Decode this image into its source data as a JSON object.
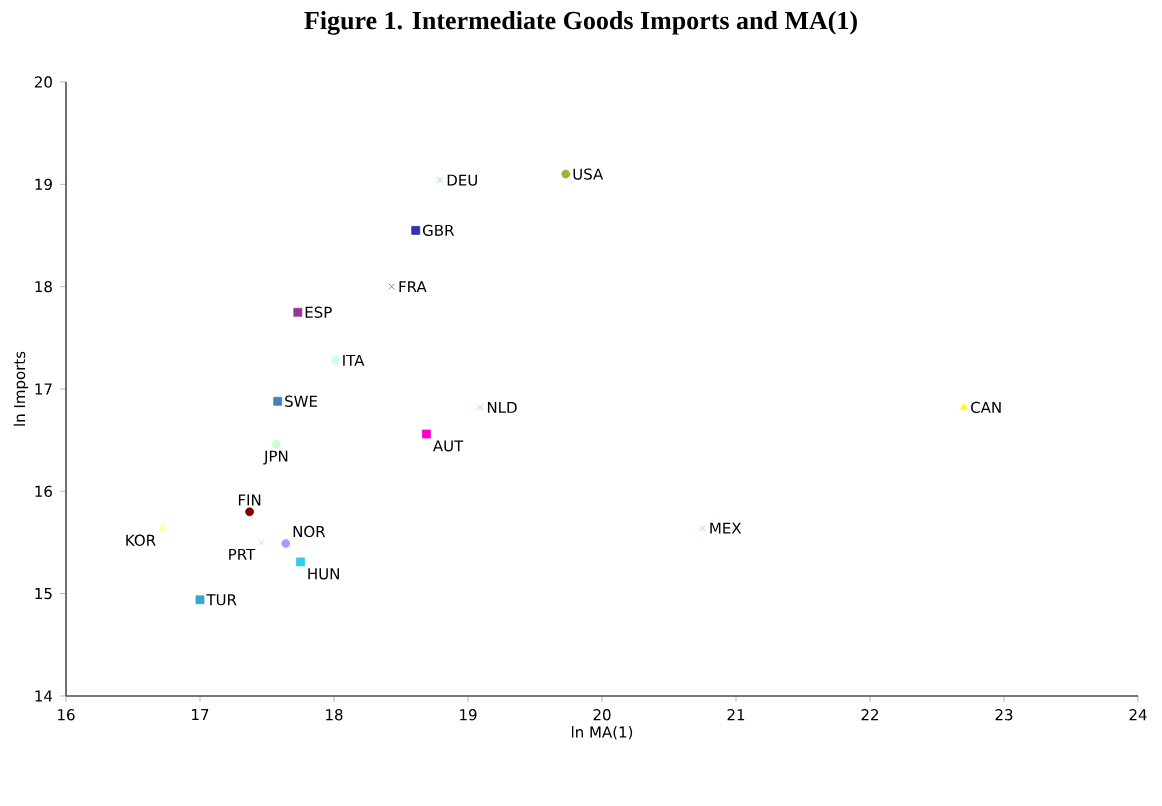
{
  "chart_data": {
    "type": "scatter",
    "title": "Figure 1. Intermediate Goods Imports and MA(1)",
    "xlabel": "ln MA(1)",
    "ylabel": "ln Imports",
    "xlim": [
      16,
      24
    ],
    "ylim": [
      14,
      20
    ],
    "xticks": [
      16,
      17,
      18,
      19,
      20,
      21,
      22,
      23,
      24
    ],
    "yticks": [
      14,
      15,
      16,
      17,
      18,
      19,
      20
    ],
    "grid": false,
    "legend": false,
    "series": [
      {
        "name": "USA",
        "color": "#99b433",
        "marker": "circle",
        "x": [
          19.73
        ],
        "values": [
          19.1
        ]
      },
      {
        "name": "DEU",
        "color": "#66e0e0",
        "marker": "cross",
        "x": [
          18.79
        ],
        "values": [
          19.04
        ]
      },
      {
        "name": "GBR",
        "color": "#3333aa",
        "marker": "square",
        "x": [
          18.61
        ],
        "values": [
          18.55
        ]
      },
      {
        "name": "FRA",
        "color": "#2e8b57",
        "marker": "cross",
        "x": [
          18.43
        ],
        "values": [
          18.0
        ]
      },
      {
        "name": "ESP",
        "color": "#993399",
        "marker": "square",
        "x": [
          17.73
        ],
        "values": [
          17.75
        ]
      },
      {
        "name": "ITA",
        "color": "#ccffee",
        "marker": "circle",
        "x": [
          18.01
        ],
        "values": [
          17.28
        ]
      },
      {
        "name": "SWE",
        "color": "#4a7ebb",
        "marker": "square",
        "x": [
          17.58
        ],
        "values": [
          16.88
        ]
      },
      {
        "name": "NLD",
        "color": "#ff99aa",
        "marker": "cross",
        "x": [
          19.09
        ],
        "values": [
          16.82
        ]
      },
      {
        "name": "CAN",
        "color": "#ffff00",
        "marker": "triangle",
        "x": [
          22.7
        ],
        "values": [
          16.82
        ]
      },
      {
        "name": "AUT",
        "color": "#ff00cc",
        "marker": "square",
        "x": [
          18.69
        ],
        "values": [
          16.56
        ]
      },
      {
        "name": "JPN",
        "color": "#ccffcc",
        "marker": "circle",
        "x": [
          17.57
        ],
        "values": [
          16.46
        ]
      },
      {
        "name": "FIN",
        "color": "#800000",
        "marker": "circle",
        "x": [
          17.37
        ],
        "values": [
          15.8
        ]
      },
      {
        "name": "KOR",
        "color": "#ffff99",
        "marker": "triangle",
        "x": [
          16.72
        ],
        "values": [
          15.64
        ]
      },
      {
        "name": "MEX",
        "color": "#99ccff",
        "marker": "cross",
        "x": [
          20.75
        ],
        "values": [
          15.64
        ]
      },
      {
        "name": "PRT",
        "color": "#ffcc66",
        "marker": "cross",
        "x": [
          17.46
        ],
        "values": [
          15.5
        ]
      },
      {
        "name": "NOR",
        "color": "#aa99ff",
        "marker": "circle",
        "x": [
          17.64
        ],
        "values": [
          15.49
        ]
      },
      {
        "name": "HUN",
        "color": "#33ccee",
        "marker": "square",
        "x": [
          17.75
        ],
        "values": [
          15.31
        ]
      },
      {
        "name": "TUR",
        "color": "#33aacc",
        "marker": "square",
        "x": [
          17.0
        ],
        "values": [
          14.94
        ]
      }
    ]
  }
}
